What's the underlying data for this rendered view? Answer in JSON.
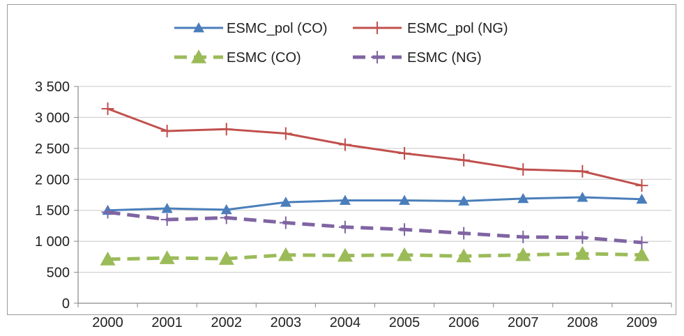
{
  "chart_data": {
    "type": "line",
    "title": "",
    "xlabel": "",
    "ylabel": "",
    "categories": [
      "2000",
      "2001",
      "2002",
      "2003",
      "2004",
      "2005",
      "2006",
      "2007",
      "2008",
      "2009"
    ],
    "ylim": [
      0,
      3500
    ],
    "yticks": [
      0,
      500,
      1000,
      1500,
      2000,
      2500,
      3000,
      3500
    ],
    "ytick_labels": [
      "0",
      "500",
      "1 000",
      "1 500",
      "2 000",
      "2 500",
      "3 000",
      "3 500"
    ],
    "grid": true,
    "legend_position": "top",
    "series": [
      {
        "name": "ESMC_pol (CO)",
        "color": "#4a7ebb",
        "line_style": "solid",
        "marker": "triangle",
        "values": [
          1500,
          1530,
          1510,
          1630,
          1660,
          1660,
          1650,
          1690,
          1710,
          1680
        ]
      },
      {
        "name": "ESMC_pol (NG)",
        "color": "#c0504d",
        "line_style": "solid",
        "marker": "plus",
        "values": [
          3140,
          2780,
          2810,
          2740,
          2560,
          2420,
          2310,
          2160,
          2130,
          1900
        ]
      },
      {
        "name": "ESMC (CO)",
        "color": "#9bbb59",
        "line_style": "dashed",
        "marker": "triangle",
        "values": [
          710,
          730,
          720,
          780,
          770,
          780,
          760,
          780,
          800,
          780
        ]
      },
      {
        "name": "ESMC (NG)",
        "color": "#8064a2",
        "line_style": "dashed",
        "marker": "plus",
        "values": [
          1470,
          1350,
          1380,
          1300,
          1230,
          1190,
          1130,
          1070,
          1060,
          980
        ]
      }
    ]
  }
}
